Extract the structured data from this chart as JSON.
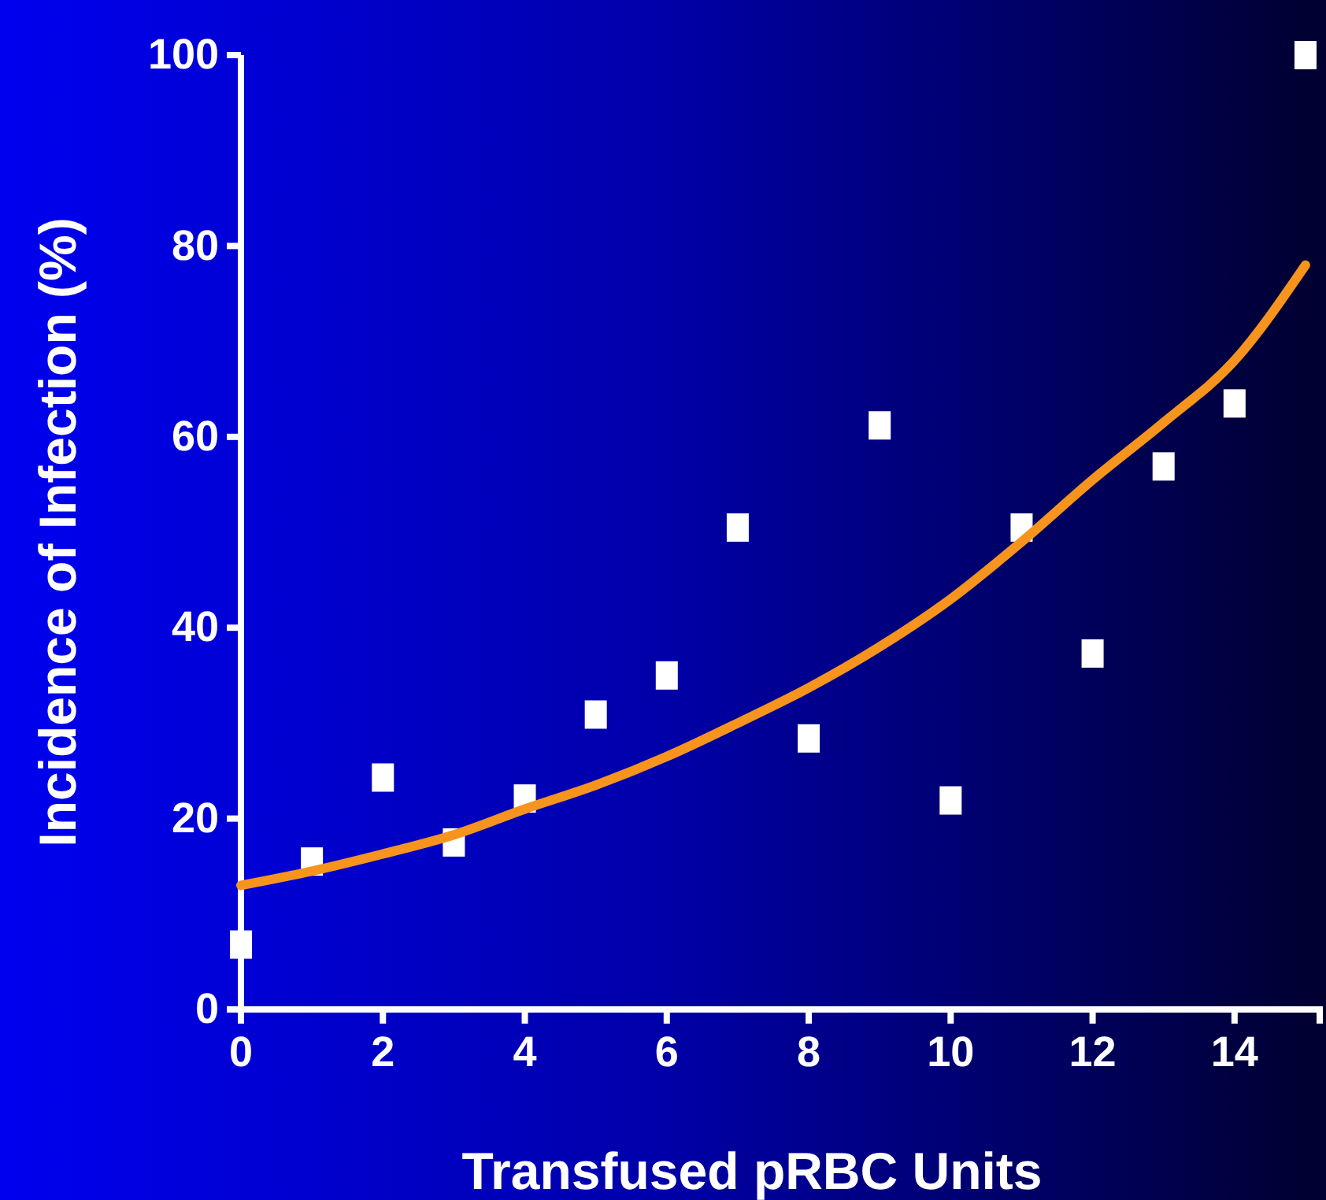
{
  "chart_data": {
    "type": "scatter",
    "xlabel": "Transfused pRBC Units",
    "ylabel": "Incidence of Infection (%)",
    "xlim": [
      0,
      15.2
    ],
    "ylim": [
      0,
      100
    ],
    "xticks": [
      0,
      2,
      4,
      6,
      8,
      10,
      12,
      14
    ],
    "yticks": [
      0,
      20,
      40,
      60,
      80,
      100
    ],
    "grid": false,
    "series": [
      {
        "marker": "square",
        "color": "#ffffff",
        "x": [
          0,
          1,
          2,
          3,
          4,
          5,
          6,
          7,
          8,
          9,
          10,
          11,
          12,
          13,
          14,
          15
        ],
        "values": [
          6.8,
          15.5,
          24.3,
          17.5,
          22.1,
          30.9,
          35,
          50.5,
          28.4,
          61.2,
          21.9,
          50.5,
          37.3,
          56.9,
          63.5,
          100
        ]
      },
      {
        "type": "line",
        "color": "#f7941d",
        "line_style": "solid",
        "x": [
          0,
          1,
          2,
          3,
          4,
          5,
          6,
          7,
          8,
          9,
          10,
          11,
          12,
          13,
          14,
          15
        ],
        "values": [
          13,
          14.5,
          16.3,
          18.3,
          21,
          23.5,
          26.5,
          30,
          33.7,
          38,
          43,
          49,
          55.5,
          61.5,
          68,
          78
        ]
      }
    ]
  }
}
